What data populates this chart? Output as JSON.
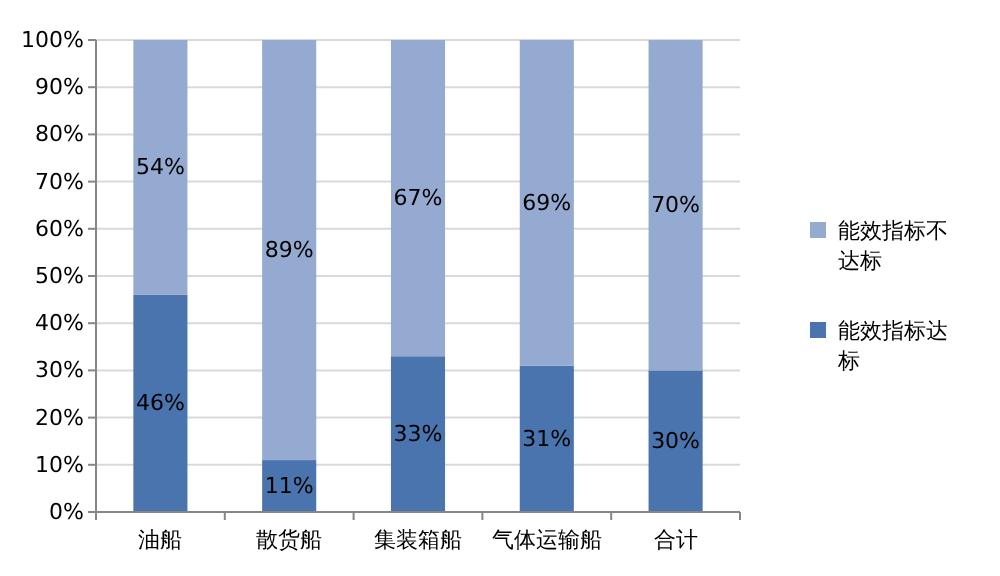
{
  "chart_data": {
    "type": "bar",
    "stacked": true,
    "categories": [
      "油船",
      "散货船",
      "集装箱船",
      "气体运输船",
      "合计"
    ],
    "series": [
      {
        "name": "能效指标达标",
        "color": "#4a74ad",
        "values": [
          46,
          11,
          33,
          31,
          30
        ],
        "value_labels": [
          "46%",
          "11%",
          "33%",
          "31%",
          "30%"
        ]
      },
      {
        "name": "能效指标不达标",
        "color": "#94aad1",
        "values": [
          54,
          89,
          67,
          69,
          70
        ],
        "value_labels": [
          "54%",
          "89%",
          "67%",
          "69%",
          "70%"
        ]
      }
    ],
    "ylim": [
      0,
      100
    ],
    "yticks": [
      {
        "value": 0,
        "label": "0%"
      },
      {
        "value": 10,
        "label": "10%"
      },
      {
        "value": 20,
        "label": "20%"
      },
      {
        "value": 30,
        "label": "30%"
      },
      {
        "value": 40,
        "label": "40%"
      },
      {
        "value": 50,
        "label": "50%"
      },
      {
        "value": 60,
        "label": "60%"
      },
      {
        "value": 70,
        "label": "70%"
      },
      {
        "value": 80,
        "label": "80%"
      },
      {
        "value": 90,
        "label": "90%"
      },
      {
        "value": 100,
        "label": "100%"
      }
    ],
    "grid": "y",
    "legend": "right"
  }
}
